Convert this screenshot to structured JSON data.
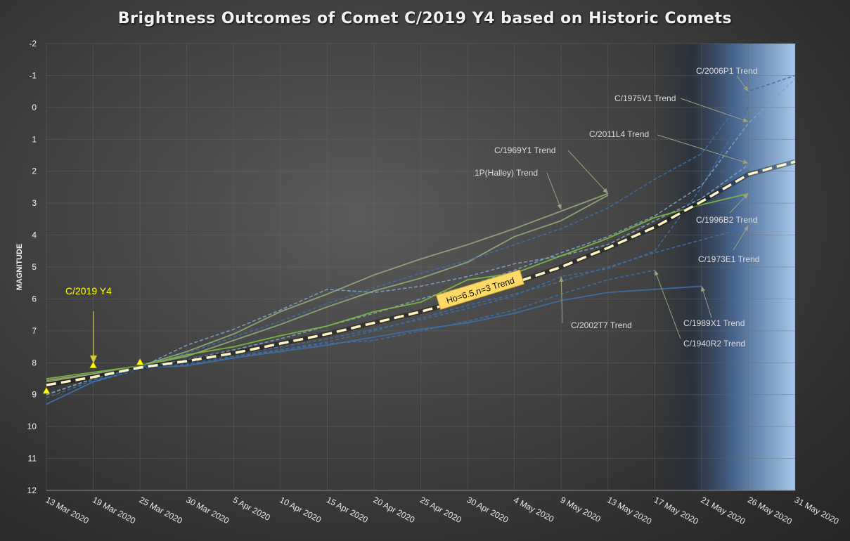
{
  "title": "Brightness Outcomes of Comet C/2019 Y4 based on Historic Comets",
  "chart_data": {
    "type": "line",
    "title": "Brightness Outcomes of Comet C/2019 Y4 based on Historic Comets",
    "xlabel": "",
    "ylabel": "MAGNITUDE",
    "x_categories": [
      "13 Mar 2020",
      "19 Mar 2020",
      "25 Mar 2020",
      "30 Mar 2020",
      "5 Apr 2020",
      "10 Apr 2020",
      "15 Apr 2020",
      "20 Apr 2020",
      "25 Apr 2020",
      "30 Apr 2020",
      "4 May 2020",
      "9 May 2020",
      "13 May 2020",
      "17 May 2020",
      "21 May 2020",
      "26 May 2020",
      "31 May 2020"
    ],
    "ylim": [
      12,
      -2
    ],
    "y_ticks": [
      -2,
      -1,
      0,
      1,
      2,
      3,
      4,
      5,
      6,
      7,
      8,
      9,
      10,
      11,
      12
    ],
    "y_inverted": true,
    "grid": true,
    "shaded_region_start": "17 May 2020",
    "colors": {
      "green": "#7dbb42",
      "blue": "#3f6fa8",
      "paleblue": "#7fa3c8",
      "sage": "#95a87a",
      "trend": "#fff4c2",
      "observation": "#ffff00",
      "label_box": "#ffd966"
    },
    "observations": {
      "label": "C/2019 Y4",
      "points": [
        [
          0,
          8.9
        ],
        [
          1,
          8.1
        ],
        [
          2,
          8.0
        ]
      ]
    },
    "main_trend": {
      "label": "Ho=6.5,n=3 Trend",
      "values": [
        [
          0,
          8.7
        ],
        [
          1,
          8.45
        ],
        [
          2,
          8.15
        ],
        [
          3,
          7.95
        ],
        [
          4,
          7.7
        ],
        [
          5,
          7.4
        ],
        [
          6,
          7.1
        ],
        [
          7,
          6.75
        ],
        [
          8,
          6.4
        ],
        [
          9,
          6.0
        ],
        [
          10,
          5.5
        ],
        [
          11,
          5.0
        ],
        [
          12,
          4.4
        ],
        [
          13,
          3.75
        ],
        [
          14,
          2.95
        ],
        [
          15,
          2.1
        ],
        [
          16,
          1.7
        ]
      ]
    },
    "series": [
      {
        "name": "C/1969Y1 Trend",
        "style": "solid",
        "color": "sage",
        "values": [
          [
            0,
            8.6
          ],
          [
            1,
            8.35
          ],
          [
            2,
            8.1
          ],
          [
            3,
            7.65
          ],
          [
            4,
            7.1
          ],
          [
            5,
            6.4
          ],
          [
            6,
            5.85
          ],
          [
            7,
            5.25
          ],
          [
            8,
            4.75
          ],
          [
            9,
            4.3
          ],
          [
            10,
            3.8
          ],
          [
            11,
            3.25
          ],
          [
            12,
            2.7
          ]
        ]
      },
      {
        "name": "1P(Halley) Trend",
        "style": "solid",
        "color": "sage",
        "values": [
          [
            0,
            8.55
          ],
          [
            1,
            8.35
          ],
          [
            2,
            8.1
          ],
          [
            3,
            7.8
          ],
          [
            4,
            7.3
          ],
          [
            5,
            6.8
          ],
          [
            6,
            6.25
          ],
          [
            7,
            5.75
          ],
          [
            8,
            5.35
          ],
          [
            9,
            4.85
          ],
          [
            10,
            4.05
          ],
          [
            11,
            3.55
          ],
          [
            12,
            2.75
          ]
        ]
      },
      {
        "name": "C/2006P1 Trend",
        "style": "dashed",
        "color": "blue",
        "values": [
          [
            0,
            9.1
          ],
          [
            1,
            8.55
          ],
          [
            2,
            8.15
          ],
          [
            3,
            7.7
          ],
          [
            4,
            7.2
          ],
          [
            5,
            6.7
          ],
          [
            6,
            6.15
          ],
          [
            7,
            5.65
          ],
          [
            8,
            5.2
          ],
          [
            9,
            4.8
          ],
          [
            10,
            4.3
          ],
          [
            11,
            3.8
          ],
          [
            12,
            3.15
          ],
          [
            13,
            2.25
          ],
          [
            14,
            1.45
          ],
          [
            15,
            -0.5
          ],
          [
            16,
            -1.0
          ]
        ]
      },
      {
        "name": "C/1975V1 Trend",
        "style": "dashed",
        "color": "paleblue",
        "values": [
          [
            0,
            9.0
          ],
          [
            1,
            8.5
          ],
          [
            2,
            8.15
          ],
          [
            3,
            7.9
          ],
          [
            4,
            7.6
          ],
          [
            5,
            7.25
          ],
          [
            6,
            6.85
          ],
          [
            7,
            6.45
          ],
          [
            8,
            6.0
          ],
          [
            9,
            5.6
          ],
          [
            10,
            5.1
          ],
          [
            11,
            4.55
          ],
          [
            12,
            4.05
          ],
          [
            13,
            3.4
          ],
          [
            14,
            2.45
          ],
          [
            15,
            0.5
          ],
          [
            16,
            -0.9
          ]
        ]
      },
      {
        "name": "C/2011L4 Trend",
        "style": "dashed",
        "color": "paleblue",
        "values": [
          [
            0,
            9.0
          ],
          [
            1,
            8.5
          ],
          [
            2,
            8.15
          ],
          [
            3,
            7.45
          ],
          [
            4,
            6.95
          ],
          [
            5,
            6.35
          ],
          [
            6,
            5.7
          ],
          [
            7,
            5.8
          ],
          [
            8,
            5.6
          ],
          [
            9,
            5.3
          ],
          [
            10,
            4.9
          ],
          [
            11,
            4.65
          ],
          [
            12,
            4.3
          ],
          [
            13,
            3.55
          ],
          [
            14,
            2.85
          ],
          [
            15,
            1.8
          ]
        ]
      },
      {
        "name": "C/1996B2 Trend",
        "style": "solid",
        "color": "green",
        "values": [
          [
            0,
            8.5
          ],
          [
            1,
            8.3
          ],
          [
            2,
            8.1
          ],
          [
            3,
            7.75
          ],
          [
            4,
            7.5
          ],
          [
            5,
            7.15
          ],
          [
            6,
            6.85
          ],
          [
            7,
            6.4
          ],
          [
            8,
            6.1
          ],
          [
            9,
            5.4
          ],
          [
            10,
            5.2
          ],
          [
            11,
            4.65
          ],
          [
            12,
            4.1
          ],
          [
            13,
            3.45
          ],
          [
            14,
            3.05
          ],
          [
            15,
            2.7
          ]
        ]
      },
      {
        "name": "C/1973E1 Trend",
        "style": "dashed",
        "color": "blue",
        "values": [
          [
            0,
            9.3
          ],
          [
            1,
            8.6
          ],
          [
            2,
            8.2
          ],
          [
            3,
            8.05
          ],
          [
            4,
            7.85
          ],
          [
            5,
            7.6
          ],
          [
            6,
            7.35
          ],
          [
            7,
            7.0
          ],
          [
            8,
            6.6
          ],
          [
            9,
            6.2
          ],
          [
            10,
            5.85
          ],
          [
            11,
            5.45
          ],
          [
            12,
            5.0
          ],
          [
            13,
            4.55
          ],
          [
            14,
            4.15
          ],
          [
            15,
            3.75
          ]
        ]
      },
      {
        "name": "C/2002T7 Trend",
        "style": "dashed",
        "color": "blue",
        "values": [
          [
            0,
            9.3
          ],
          [
            1,
            8.6
          ],
          [
            2,
            8.2
          ],
          [
            3,
            8.0
          ],
          [
            4,
            7.75
          ],
          [
            5,
            7.5
          ],
          [
            6,
            7.25
          ],
          [
            7,
            6.95
          ],
          [
            8,
            6.65
          ],
          [
            9,
            6.3
          ],
          [
            10,
            5.9
          ],
          [
            11,
            5.3
          ],
          [
            12,
            5.05
          ],
          [
            13,
            4.5
          ],
          [
            14,
            2.5
          ],
          [
            15,
            0.0
          ]
        ]
      },
      {
        "name": "C/1989X1 Trend",
        "style": "solid",
        "color": "blue",
        "values": [
          [
            0,
            9.3
          ],
          [
            1,
            8.6
          ],
          [
            2,
            8.15
          ],
          [
            3,
            8.1
          ],
          [
            4,
            7.85
          ],
          [
            5,
            7.65
          ],
          [
            6,
            7.45
          ],
          [
            7,
            7.2
          ],
          [
            8,
            6.95
          ],
          [
            9,
            6.75
          ],
          [
            10,
            6.45
          ],
          [
            11,
            6.05
          ],
          [
            12,
            5.8
          ],
          [
            13,
            5.7
          ],
          [
            14,
            5.6
          ]
        ]
      },
      {
        "name": "C/1940R2 Trend",
        "style": "dashed",
        "color": "blue",
        "values": [
          [
            0,
            9.3
          ],
          [
            1,
            8.6
          ],
          [
            2,
            8.2
          ],
          [
            3,
            8.0
          ],
          [
            4,
            7.8
          ],
          [
            5,
            7.6
          ],
          [
            6,
            7.4
          ],
          [
            7,
            7.3
          ],
          [
            8,
            7.0
          ],
          [
            9,
            6.7
          ],
          [
            10,
            6.35
          ],
          [
            11,
            5.85
          ],
          [
            12,
            5.4
          ],
          [
            13,
            5.1
          ]
        ]
      }
    ],
    "annotations": [
      {
        "text": "C/2006P1 Trend",
        "target": [
          15,
          -0.5
        ]
      },
      {
        "text": "C/1975V1 Trend",
        "target": [
          15,
          0.45
        ]
      },
      {
        "text": "C/2011L4 Trend",
        "target": [
          15,
          1.75
        ]
      },
      {
        "text": "C/1969Y1 Trend",
        "target": [
          12,
          2.7
        ]
      },
      {
        "text": "1P(Halley) Trend",
        "target": [
          11,
          3.2
        ]
      },
      {
        "text": "C/1996B2 Trend",
        "target": [
          15,
          2.7
        ]
      },
      {
        "text": "C/1973E1 Trend",
        "target": [
          15,
          3.7
        ]
      },
      {
        "text": "C/2002T7 Trend",
        "target": [
          11,
          5.3
        ]
      },
      {
        "text": "C/1989X1 Trend",
        "target": [
          14,
          5.6
        ]
      },
      {
        "text": "C/1940R2 Trend",
        "target": [
          13,
          5.1
        ]
      }
    ]
  }
}
